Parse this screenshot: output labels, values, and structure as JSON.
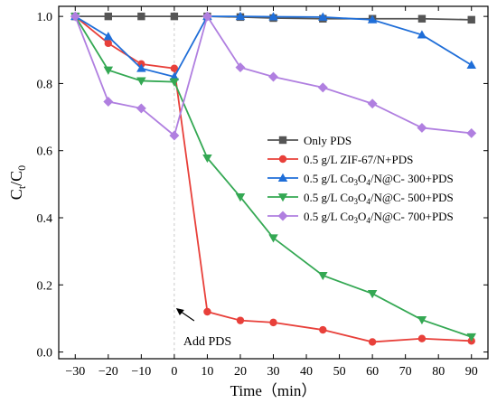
{
  "chart_data": {
    "type": "line",
    "xlabel": "Time（min）",
    "ylabel": "Ct/C0",
    "xlim": [
      -35,
      95
    ],
    "ylim": [
      -0.02,
      1.03
    ],
    "x_ticks": [
      -30,
      -20,
      -10,
      0,
      10,
      20,
      30,
      40,
      50,
      60,
      70,
      80,
      90
    ],
    "y_ticks": [
      0.0,
      0.2,
      0.4,
      0.6,
      0.8,
      1.0
    ],
    "grid": false,
    "legend_position": "right-middle",
    "annotation": {
      "text": "Add PDS",
      "x": 0
    },
    "series": [
      {
        "name": "Only PDS",
        "legend_parts": [
          "Only PDS"
        ],
        "color": "#555555",
        "marker": "square",
        "x": [
          -30,
          -20,
          -10,
          0,
          10,
          20,
          30,
          45,
          60,
          75,
          90
        ],
        "y": [
          1.0,
          1.0,
          1.0,
          1.0,
          1.0,
          0.998,
          0.995,
          0.993,
          0.993,
          0.993,
          0.99
        ]
      },
      {
        "name": "0.5 g/L ZIF-67/N+PDS",
        "legend_parts": [
          "0.5 g/L ZIF-67/N+PDS"
        ],
        "color": "#e8403a",
        "marker": "circle",
        "x": [
          -30,
          -20,
          -10,
          0,
          10,
          20,
          30,
          45,
          60,
          75,
          90
        ],
        "y": [
          1.0,
          0.92,
          0.858,
          0.845,
          0.12,
          0.094,
          0.088,
          0.066,
          0.03,
          0.04,
          0.033
        ]
      },
      {
        "name": "0.5 g/L Co3O4/N@C- 300+PDS",
        "legend_parts": [
          "0.5 g/L Co",
          "3",
          "O",
          "4",
          "/N@C- 300+PDS"
        ],
        "color": "#1f6ed8",
        "marker": "triangle-up",
        "x": [
          -30,
          -20,
          -10,
          0,
          10,
          20,
          30,
          45,
          60,
          75,
          90
        ],
        "y": [
          1.0,
          0.94,
          0.845,
          0.82,
          1.0,
          1.0,
          0.999,
          0.998,
          0.99,
          0.945,
          0.855
        ]
      },
      {
        "name": "0.5 g/L Co3O4/N@C- 500+PDS",
        "legend_parts": [
          "0.5 g/L Co",
          "3",
          "O",
          "4",
          "/N@C- 500+PDS"
        ],
        "color": "#34a853",
        "marker": "triangle-down",
        "x": [
          -30,
          -20,
          -10,
          0,
          10,
          20,
          30,
          45,
          60,
          75,
          90
        ],
        "y": [
          1.0,
          0.84,
          0.808,
          0.805,
          0.578,
          0.462,
          0.34,
          0.228,
          0.174,
          0.096,
          0.045
        ]
      },
      {
        "name": "0.5 g/L Co3O4/N@C- 700+PDS",
        "legend_parts": [
          "0.5 g/L Co",
          "3",
          "O",
          "4",
          "/N@C- 700+PDS"
        ],
        "color": "#b07fe0",
        "marker": "diamond",
        "x": [
          -30,
          -20,
          -10,
          0,
          10,
          20,
          30,
          45,
          60,
          75,
          90
        ],
        "y": [
          1.0,
          0.746,
          0.726,
          0.645,
          1.0,
          0.848,
          0.82,
          0.788,
          0.74,
          0.668,
          0.652
        ]
      }
    ]
  }
}
